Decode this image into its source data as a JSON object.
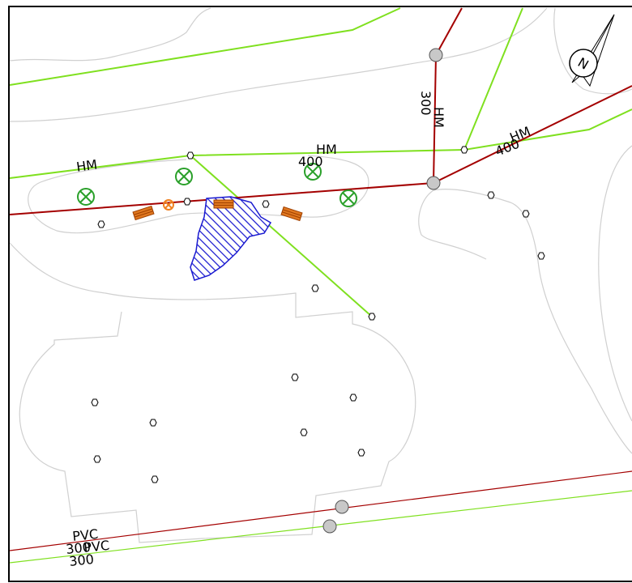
{
  "labels": [
    "HM",
    "HM",
    "400",
    "300",
    "HM",
    "HM",
    "400",
    "PVC",
    "300",
    "PVC",
    "300"
  ],
  "compass": "N"
}
